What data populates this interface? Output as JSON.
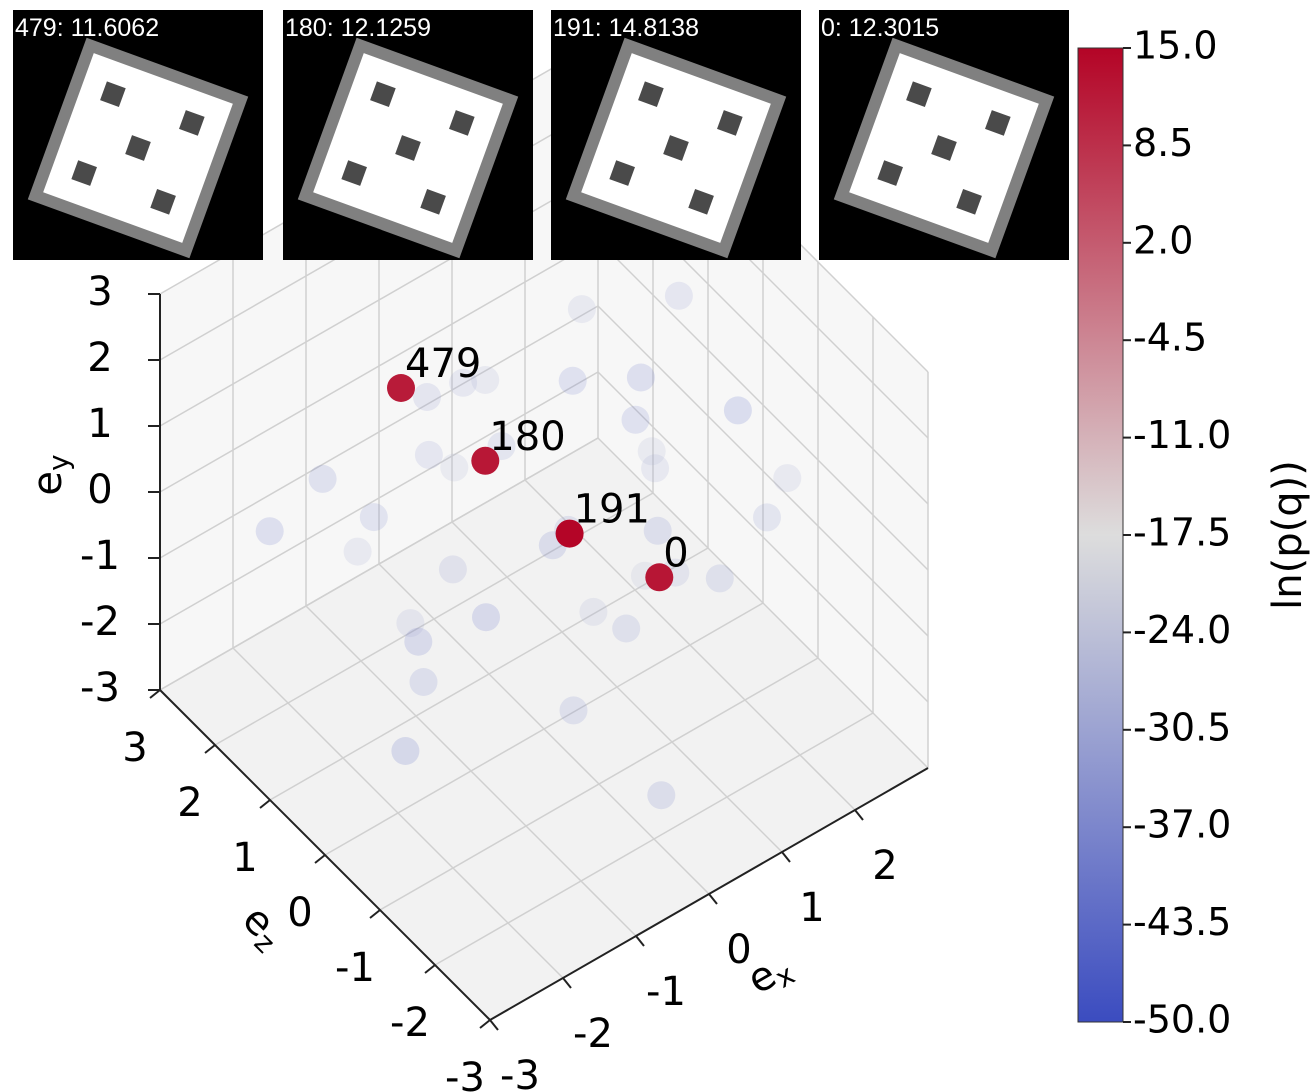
{
  "chart_data": {
    "type": "scatter3d",
    "xlabel": {
      "base": "e",
      "sub": "x"
    },
    "ylabel": {
      "base": "e",
      "sub": "y"
    },
    "zlabel": {
      "base": "e",
      "sub": "z"
    },
    "xlim": [
      -3,
      3
    ],
    "ylim": [
      -3,
      3
    ],
    "zlim": [
      -3,
      3
    ],
    "xticks": [
      -3,
      -2,
      -1,
      0,
      1,
      2
    ],
    "yticks": [
      -3,
      -2,
      -1,
      0,
      1,
      2,
      3
    ],
    "zticks": [
      -3,
      -2,
      -1,
      0,
      1,
      2,
      3
    ],
    "grid": true,
    "colormap": [
      "#3b4cc0",
      "#dddddd",
      "#b40426"
    ],
    "clim": [
      -50,
      15
    ],
    "colorbar_label": "ln(p(q))",
    "cticks": [
      {
        "value": 15,
        "label": "15.0"
      },
      {
        "value": 8.5,
        "label": "8.5"
      },
      {
        "value": 2,
        "label": "2.0"
      },
      {
        "value": -4.5,
        "label": "-4.5"
      },
      {
        "value": -11,
        "label": "-11.0"
      },
      {
        "value": -17.5,
        "label": "-17.5"
      },
      {
        "value": -24,
        "label": "-24.0"
      },
      {
        "value": -30.5,
        "label": "-30.5"
      },
      {
        "value": -37,
        "label": "-37.0"
      },
      {
        "value": -43.5,
        "label": "-43.5"
      },
      {
        "value": -50,
        "label": "-50.0"
      }
    ],
    "series": [
      {
        "alpha": 0.18,
        "x": [
          -1.2,
          0.5,
          1.8,
          -2.1,
          0.9,
          -0.4,
          1.3,
          -1.7,
          2.2,
          0.1,
          -0.9,
          1.6,
          -2.4,
          0.7,
          -1.5,
          2.0,
          -0.2,
          1.1,
          -1.0,
          0.3,
          1.9,
          -2.0,
          0.6,
          -0.7,
          1.4,
          -1.3,
          2.3,
          -0.5,
          0.8,
          -1.8,
          1.0,
          -0.1,
          2.1,
          -2.2,
          0.4,
          -1.1
        ],
        "y": [
          1.5,
          2.2,
          0.8,
          -0.5,
          -1.8,
          0.3,
          2.5,
          1.0,
          -1.2,
          -2.4,
          -0.8,
          1.7,
          0.6,
          -0.2,
          -1.5,
          0.1,
          1.2,
          -2.0,
          2.0,
          -1.0,
          -0.6,
          1.3,
          0.9,
          -2.2,
          0.4,
          -0.3,
          1.6,
          -1.4,
          2.4,
          0.0,
          -1.1,
          1.9,
          -2.3,
          -1.6,
          0.7,
          2.3
        ],
        "z": [
          0.5,
          -1.0,
          1.7,
          2.2,
          -0.3,
          1.1,
          -1.8,
          -0.6,
          0.9,
          -2.0,
          1.9,
          -2.3,
          -0.9,
          2.4,
          0.2,
          -1.4,
          -2.1,
          1.3,
          0.8,
          -0.5,
          2.0,
          -1.6,
          -2.4,
          1.5,
          -0.1,
          2.3,
          0.6,
          -1.2,
          -0.7,
          1.0,
          2.1,
          -2.2,
          0.4,
          -0.4,
          1.6,
          -1.9
        ],
        "c": [
          -32,
          -38,
          -29,
          -41,
          -35,
          -27,
          -44,
          -33,
          -30,
          -39,
          -36,
          -28,
          -42,
          -31,
          -37,
          -34,
          -26,
          -40,
          -33,
          -29,
          -38,
          -43,
          -35,
          -30,
          -27,
          -39,
          -32,
          -36,
          -41,
          -28,
          -34,
          -37,
          -31,
          -45,
          -29,
          -35
        ]
      },
      {
        "alpha": 1,
        "x": [
          0.0,
          0.1,
          0.2,
          0.6
        ],
        "y": [
          0,
          0,
          0,
          0
        ],
        "z": [
          2.6,
          1.2,
          -0.2,
          -1.3
        ],
        "c": [
          11.6062,
          12.1259,
          14.8138,
          12.3015
        ],
        "labels": [
          "479",
          "180",
          "191",
          "0"
        ]
      }
    ],
    "insets": [
      {
        "title": "479: 11.6062"
      },
      {
        "title": "180: 12.1259"
      },
      {
        "title": "191: 14.8138"
      },
      {
        "title": "0: 12.3015"
      }
    ]
  }
}
